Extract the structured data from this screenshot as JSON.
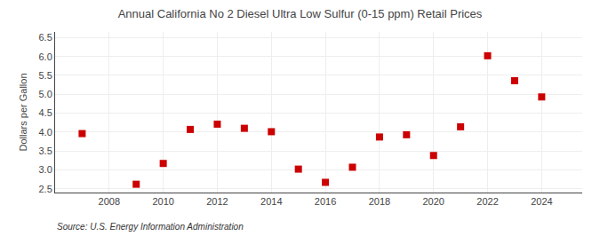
{
  "chart_data": {
    "type": "scatter",
    "title": "Annual California No 2 Diesel Ultra Low Sulfur (0-15 ppm) Retail Prices",
    "ylabel": "Dollars per Gallon",
    "annotations": [
      "Source: U.S. Energy Information Administration"
    ],
    "x": [
      2007,
      2009,
      2010,
      2011,
      2012,
      2013,
      2014,
      2015,
      2016,
      2017,
      2018,
      2019,
      2020,
      2021,
      2022,
      2023,
      2024
    ],
    "values": [
      3.96,
      2.62,
      3.17,
      4.07,
      4.21,
      4.1,
      4.01,
      3.02,
      2.67,
      3.07,
      3.87,
      3.93,
      3.38,
      4.14,
      6.02,
      5.36,
      4.93
    ],
    "color": "#cc0000",
    "marker": "square",
    "xlim": [
      2006.0,
      2025.5
    ],
    "ylim": [
      2.4,
      6.65
    ],
    "xticks": [
      2008,
      2010,
      2012,
      2014,
      2016,
      2018,
      2020,
      2022,
      2024
    ],
    "yticks": [
      2.5,
      {
        "value": 3.0,
        "label": "3.0"
      },
      3.5,
      {
        "value": 4.0,
        "label": "4.0"
      },
      4.5,
      {
        "value": 5.0,
        "label": "5.0"
      },
      5.5,
      {
        "value": 6.0,
        "label": "6.0"
      },
      6.5
    ],
    "grid": true
  }
}
